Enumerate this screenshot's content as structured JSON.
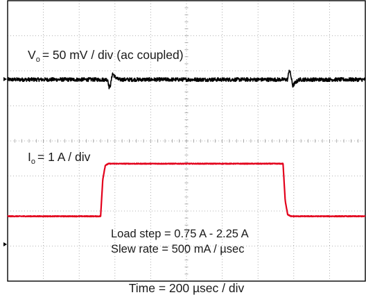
{
  "chart_data": {
    "type": "line",
    "title": "",
    "xlabel": "Time = 200 µsec / div",
    "grid": true,
    "grid_divisions": {
      "x": 10,
      "y": 8
    },
    "x_range_div": [
      0,
      10
    ],
    "channels": [
      {
        "name_main": "V",
        "name_sub": "o",
        "label_rest": "= 50 mV / div (ac coupled)",
        "color": "#000000",
        "scale_mV_per_div": 50,
        "coupling": "ac",
        "offset_div": 5.75,
        "x_div": [
          0,
          2.8,
          2.84,
          2.88,
          2.93,
          3.0,
          3.1,
          7.83,
          7.87,
          7.91,
          7.97,
          8.05,
          8.15,
          10
        ],
        "y_mV": [
          0,
          0,
          -12,
          -7,
          9,
          4,
          0,
          0,
          14,
          8,
          -9,
          -4,
          0,
          0
        ]
      },
      {
        "name_main": "I",
        "name_sub": "o",
        "label_rest": "= 1 A / div",
        "color": "#e3001b",
        "scale_A_per_div": 1,
        "offset_div": 1.1,
        "x_div": [
          0,
          2.6,
          2.62,
          2.66,
          2.73,
          2.82,
          7.7,
          7.72,
          7.76,
          7.83,
          7.92,
          10
        ],
        "y_A": [
          0.75,
          0.75,
          1.1,
          1.8,
          2.2,
          2.25,
          2.25,
          1.9,
          1.2,
          0.8,
          0.75,
          0.75
        ]
      }
    ],
    "annotations": [
      "Load step = 0.75 A - 2.25 A",
      "Slew rate = 500 mA / µsec"
    ]
  }
}
